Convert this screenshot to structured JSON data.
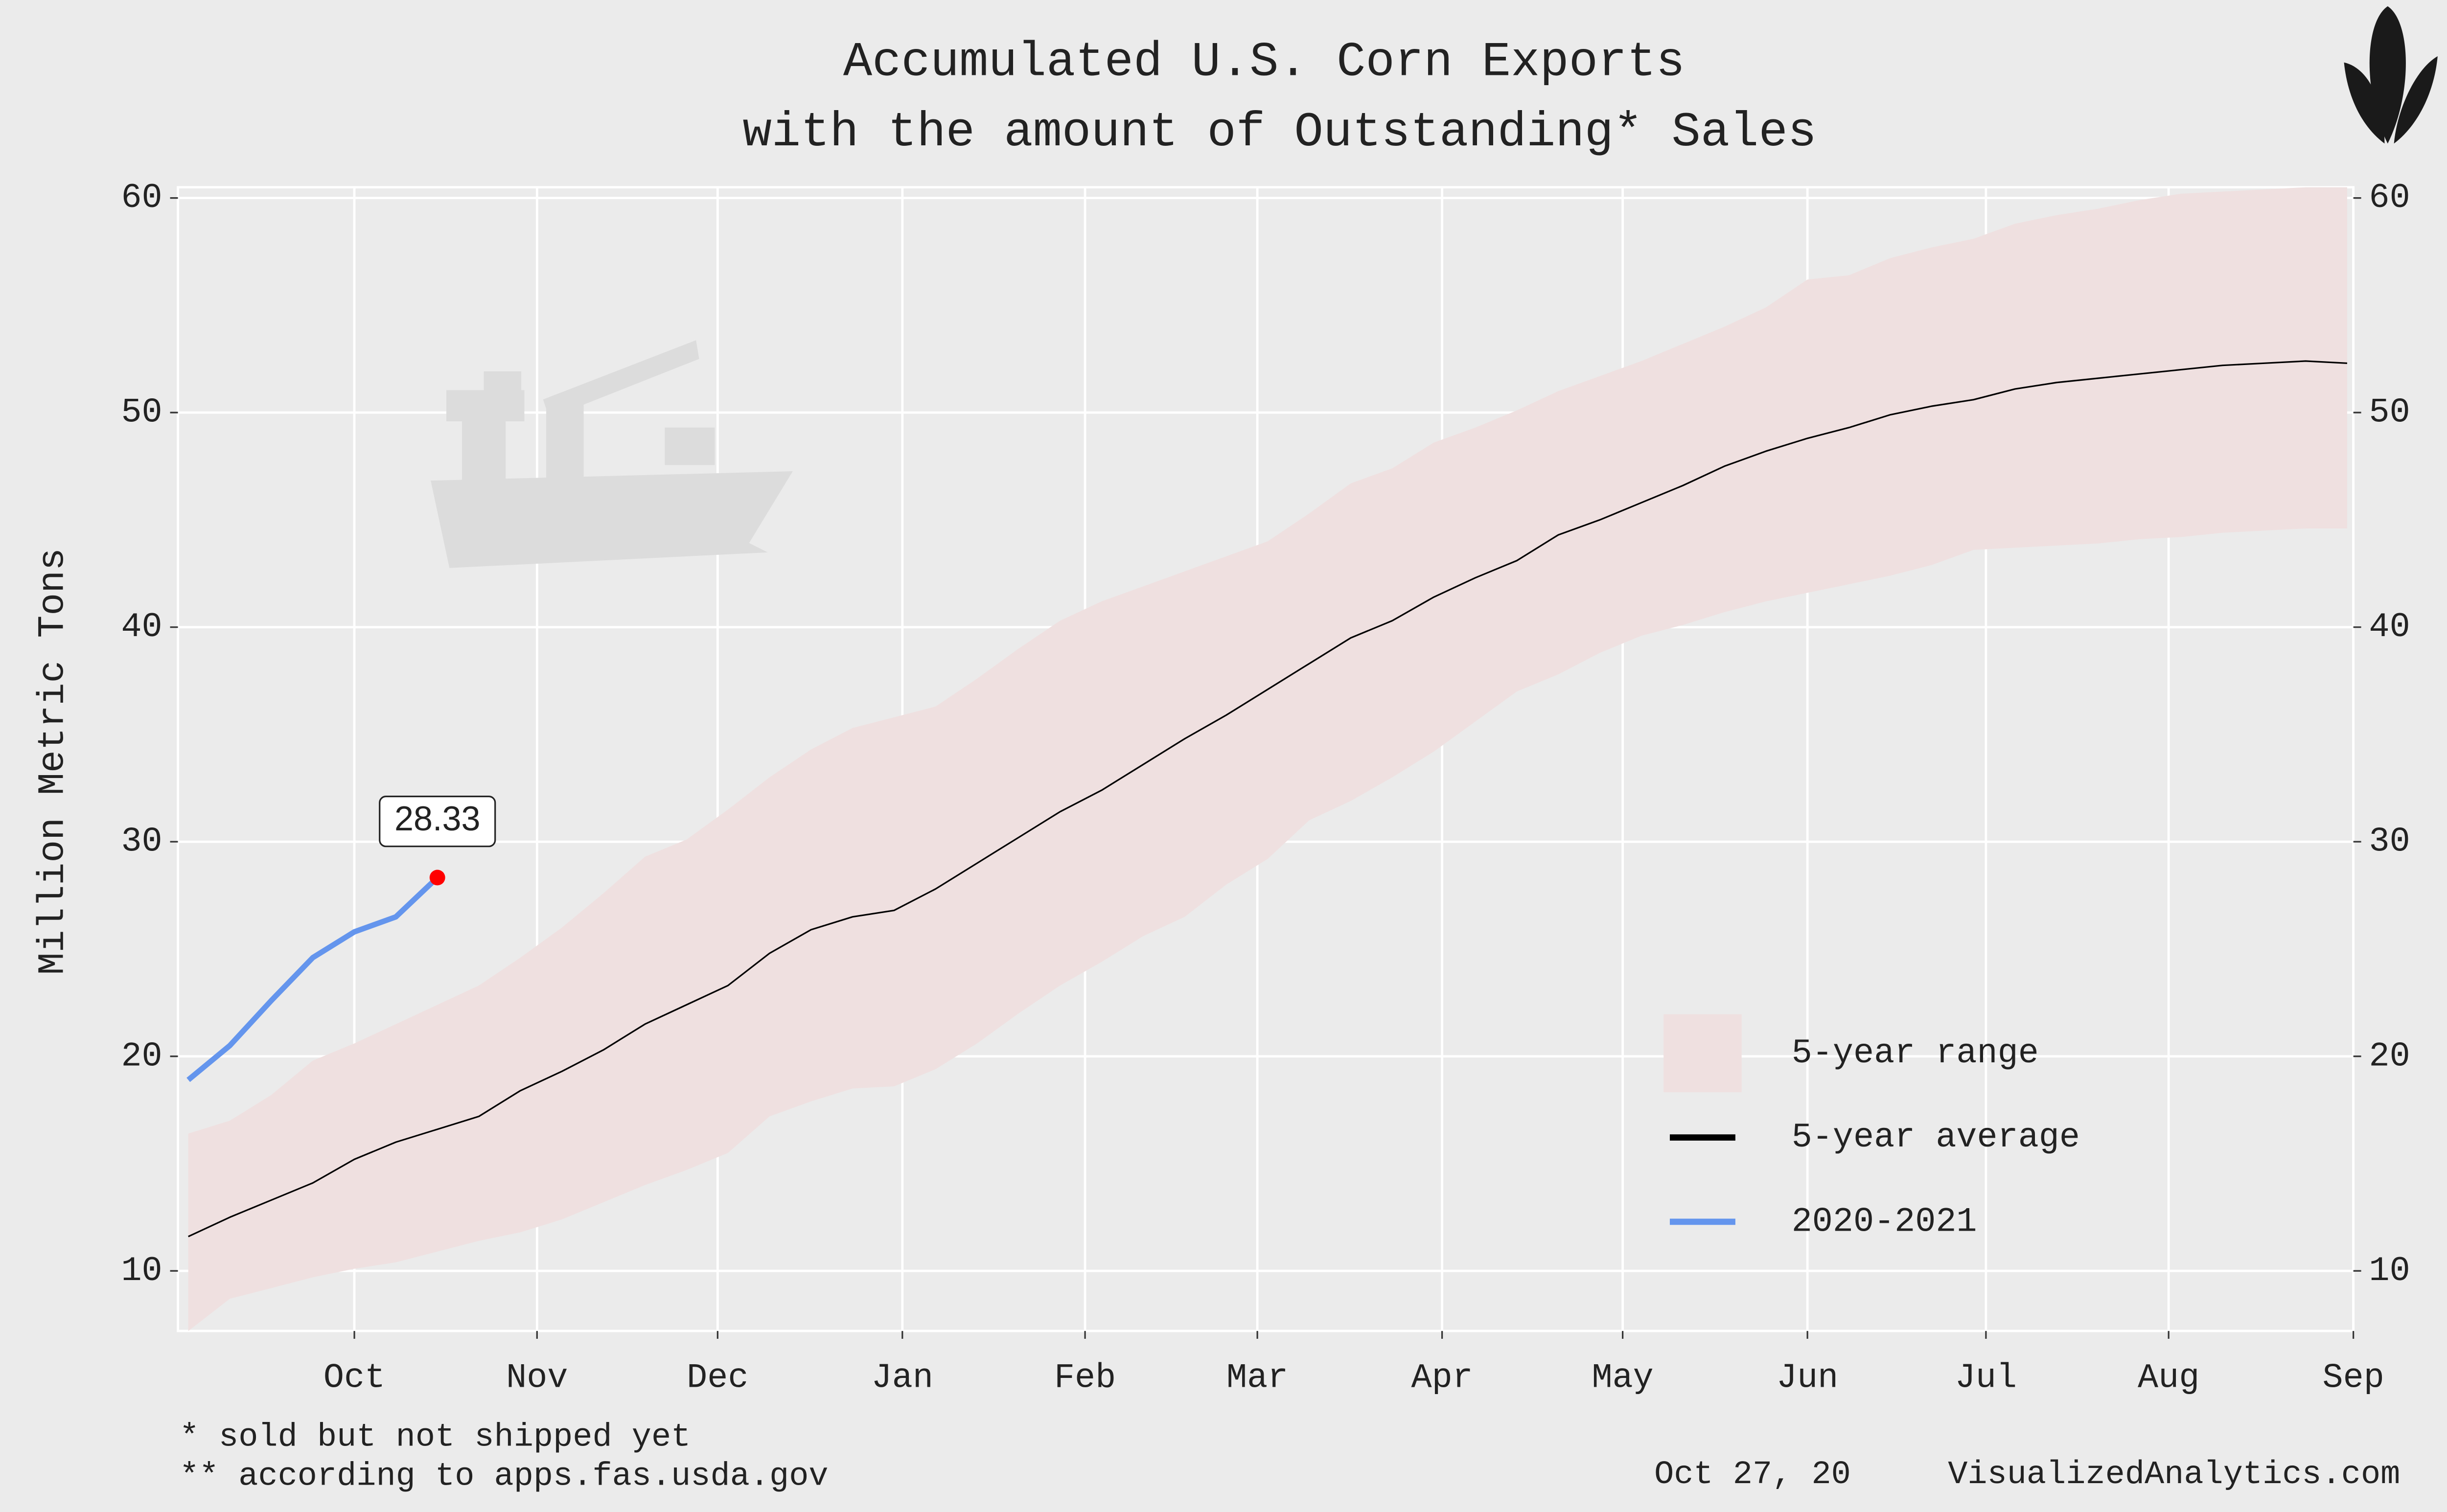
{
  "chart_data": {
    "type": "line",
    "title": "Accumulated U.S. Corn Exports",
    "subtitle": "with the amount of Outstanding* Sales",
    "y_label": "Million Metric Tons",
    "xlim": [
      -0.25,
      52.15
    ],
    "xticks": [
      {
        "value": 4.0,
        "label": "Oct"
      },
      {
        "value": 8.4,
        "label": "Nov"
      },
      {
        "value": 12.75,
        "label": "Dec"
      },
      {
        "value": 17.2,
        "label": "Jan"
      },
      {
        "value": 21.6,
        "label": "Feb"
      },
      {
        "value": 25.75,
        "label": "Mar"
      },
      {
        "value": 30.2,
        "label": "Apr"
      },
      {
        "value": 34.55,
        "label": "May"
      },
      {
        "value": 39.0,
        "label": "Jun"
      },
      {
        "value": 43.3,
        "label": "Jul"
      },
      {
        "value": 47.7,
        "label": "Aug"
      },
      {
        "value": 52.15,
        "label": "Sep"
      }
    ],
    "ylim": [
      7.2,
      60.5
    ],
    "yticks": [
      10,
      20,
      30,
      40,
      50,
      60
    ],
    "y2lim": [
      7.2,
      60.5
    ],
    "y2ticks": [
      10,
      20,
      30,
      40,
      50,
      60
    ],
    "grid": true,
    "legend": "lower right",
    "series": [
      {
        "name": "5-year range",
        "color": "#efe0e0",
        "low": [
          7.2,
          8.7,
          9.2,
          9.7,
          10.1,
          10.4,
          10.9,
          11.4,
          11.8,
          12.4,
          13.2,
          14.0,
          14.7,
          15.5,
          17.2,
          17.9,
          18.5,
          18.6,
          19.4,
          20.6,
          22.0,
          23.3,
          24.4,
          25.6,
          26.5,
          28.0,
          29.2,
          31.0,
          31.9,
          33.0,
          34.2,
          35.6,
          37.0,
          37.8,
          38.8,
          39.6,
          40.1,
          40.7,
          41.2,
          41.6,
          42.0,
          42.4,
          42.9,
          43.6,
          43.7,
          43.8,
          43.9,
          44.1,
          44.2,
          44.4,
          44.5,
          44.6,
          44.6
        ],
        "high": [
          16.4,
          17.0,
          18.2,
          19.8,
          20.6,
          21.5,
          22.4,
          23.3,
          24.6,
          26.0,
          27.6,
          29.3,
          30.1,
          31.5,
          33.0,
          34.3,
          35.3,
          35.8,
          36.3,
          37.6,
          39.0,
          40.3,
          41.2,
          41.9,
          42.6,
          43.3,
          44.0,
          45.3,
          46.7,
          47.4,
          48.6,
          49.3,
          50.1,
          51.0,
          51.7,
          52.4,
          53.2,
          54.0,
          54.9,
          56.2,
          56.4,
          57.2,
          57.7,
          58.1,
          58.8,
          59.2,
          59.5,
          59.9,
          60.2,
          60.3,
          60.4,
          60.5,
          60.5
        ]
      },
      {
        "name": "5-year average",
        "color": "#000000",
        "values": [
          11.6,
          12.5,
          13.3,
          14.1,
          15.2,
          16.0,
          16.6,
          17.2,
          18.4,
          19.3,
          20.3,
          21.5,
          22.4,
          23.3,
          24.8,
          25.9,
          26.5,
          26.8,
          27.8,
          29.0,
          30.2,
          31.4,
          32.4,
          33.6,
          34.8,
          35.9,
          37.1,
          38.3,
          39.5,
          40.3,
          41.4,
          42.3,
          43.1,
          44.3,
          45.0,
          45.8,
          46.6,
          47.5,
          48.2,
          48.8,
          49.3,
          49.9,
          50.3,
          50.6,
          51.1,
          51.4,
          51.6,
          51.8,
          52.0,
          52.2,
          52.3,
          52.4,
          52.3
        ]
      },
      {
        "name": "2020-2021",
        "color": "#6495ed",
        "point_color": "#ff0000",
        "values": [
          18.9,
          20.5,
          22.6,
          24.6,
          25.8,
          26.5,
          28.33,
          null,
          null,
          null,
          null,
          null,
          null,
          null,
          null,
          null,
          null,
          null,
          null,
          null,
          null,
          null,
          null,
          null,
          null,
          null,
          null,
          null,
          null,
          null,
          null,
          null,
          null,
          null,
          null,
          null,
          null,
          null,
          null,
          null,
          null,
          null,
          null,
          null,
          null,
          null,
          null,
          null,
          null,
          null,
          null,
          null,
          null
        ]
      }
    ],
    "notes": [
      "* sold but not shipped yet",
      "** according to apps.fas.usda.gov"
    ],
    "date": "Oct 27, 20",
    "source": "VisualizedAnalytics.com"
  }
}
